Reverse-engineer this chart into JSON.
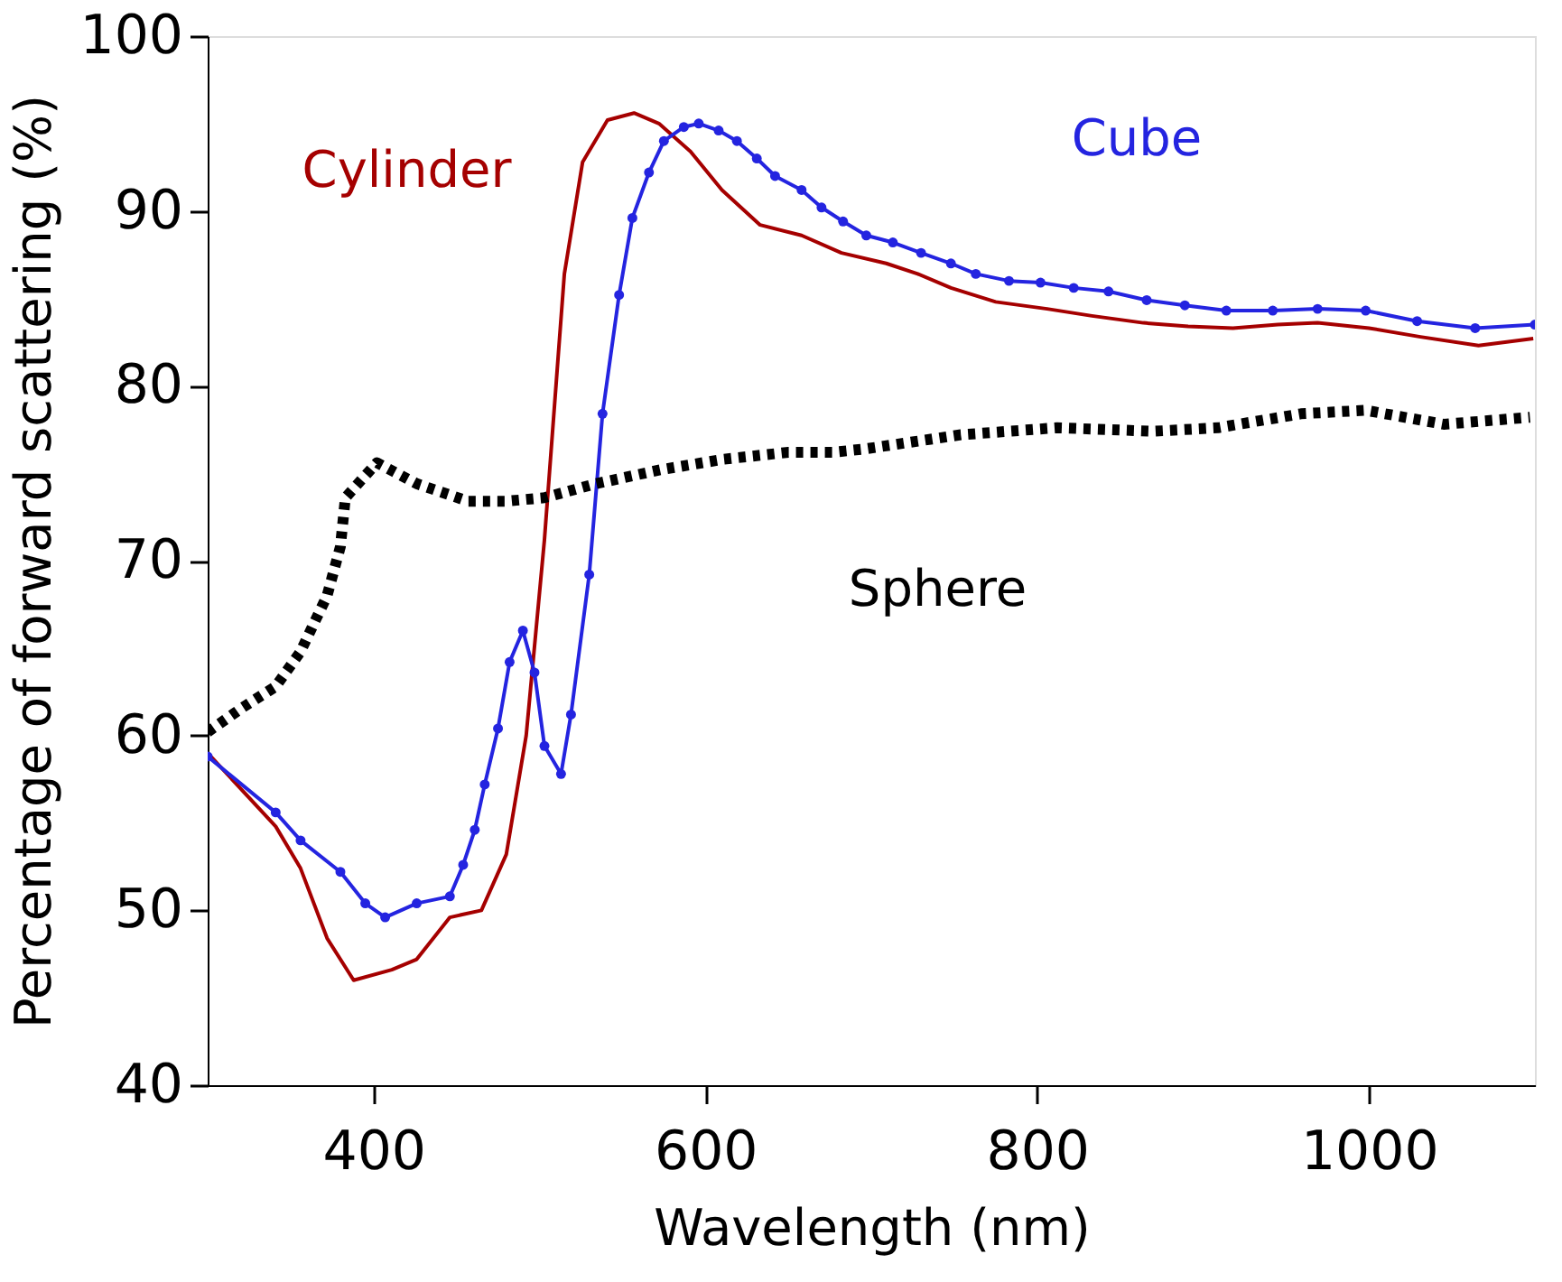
{
  "chart_data": {
    "type": "line",
    "xlabel": "Wavelength (nm)",
    "ylabel": "Percentage of forward scattering (%)",
    "xlim": [
      300,
      1100
    ],
    "xticks": [
      400,
      600,
      800,
      1000
    ],
    "ylim": [
      40,
      100
    ],
    "yticks": [
      40,
      50,
      60,
      70,
      80,
      90,
      100
    ],
    "grid": false,
    "series": [
      {
        "name": "Cylinder",
        "color": "#a50000",
        "marker": "none",
        "line_style": "solid",
        "x": [
          300,
          341,
          356,
          372,
          388,
          411,
          426,
          446,
          465,
          480,
          492,
          503,
          515,
          526,
          541,
          557,
          572,
          591,
          610,
          633,
          658,
          682,
          709,
          728,
          748,
          775,
          806,
          833,
          864,
          891,
          918,
          945,
          969,
          1000,
          1031,
          1066,
          1099
        ],
        "values": [
          59,
          54.8,
          52.4,
          48.4,
          46,
          46.6,
          47.2,
          49.6,
          50,
          53.2,
          60,
          71.2,
          86.4,
          92.8,
          95.2,
          95.6,
          95,
          93.4,
          91.2,
          89.2,
          88.6,
          87.6,
          87,
          86.4,
          85.6,
          84.8,
          84.4,
          84,
          83.6,
          83.4,
          83.3,
          83.5,
          83.6,
          83.3,
          82.8,
          82.3,
          82.7
        ]
      },
      {
        "name": "Cube",
        "color": "#2424e0",
        "marker": "circle",
        "line_style": "solid",
        "x": [
          300,
          341,
          356,
          380,
          395,
          407,
          426,
          446,
          454,
          461,
          467,
          475,
          482,
          490,
          497,
          503,
          513,
          519,
          530,
          538,
          548,
          556,
          566,
          575,
          587,
          596,
          608,
          619,
          631,
          642,
          658,
          670,
          683,
          697,
          713,
          730,
          748,
          763,
          783,
          802,
          822,
          843,
          866,
          889,
          914,
          942,
          969,
          998,
          1029,
          1064,
          1100
        ],
        "values": [
          58.8,
          55.6,
          54,
          52.2,
          50.4,
          49.6,
          50.4,
          50.8,
          52.6,
          54.6,
          57.2,
          60.4,
          64.2,
          66,
          63.6,
          59.4,
          57.8,
          61.2,
          69.2,
          78.4,
          85.2,
          89.6,
          92.2,
          94,
          94.8,
          95,
          94.6,
          94,
          93,
          92,
          91.2,
          90.2,
          89.4,
          88.6,
          88.2,
          87.6,
          87,
          86.4,
          86,
          85.9,
          85.6,
          85.4,
          84.9,
          84.6,
          84.3,
          84.3,
          84.4,
          84.3,
          83.7,
          83.3,
          83.5
        ]
      },
      {
        "name": "Sphere",
        "color": "#000000",
        "marker": "none",
        "line_style": "dotted",
        "x": [
          300,
          321,
          341,
          356,
          372,
          380,
          383,
          402,
          426,
          457,
          480,
          503,
          534,
          573,
          611,
          650,
          677,
          697,
          754,
          812,
          870,
          909,
          959,
          998,
          1045,
          1097
        ],
        "values": [
          60.2,
          61.6,
          62.8,
          64.8,
          68,
          70.8,
          73.6,
          75.6,
          74.4,
          73.4,
          73.4,
          73.6,
          74.4,
          75.2,
          75.8,
          76.2,
          76.2,
          76.4,
          77.2,
          77.6,
          77.4,
          77.6,
          78.4,
          78.6,
          77.8,
          78.2
        ]
      }
    ]
  }
}
